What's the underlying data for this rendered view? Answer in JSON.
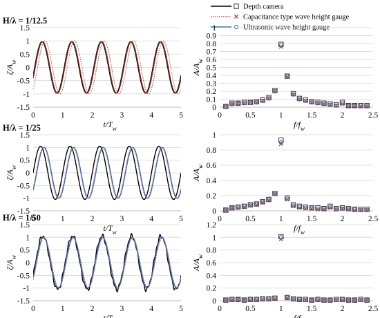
{
  "legend": [
    {
      "label": "Depth camera",
      "marker": "square",
      "line_color": "#000000",
      "marker_color": "#333333"
    },
    {
      "label": "Capacitance type wave height gauge",
      "marker": "x",
      "line_color": "#c0504d",
      "marker_color": "#c0392b"
    },
    {
      "label": "Ultrasonic wave height gauge",
      "marker": "circle",
      "line_color": "#2e75b6",
      "marker_color": "#2e75b6"
    }
  ],
  "chart_data": [
    {
      "type": "line",
      "row": 0,
      "panel": "time",
      "heading": "H/λ = 1/12.5",
      "xlabel": "t/T",
      "xlabel_sub": "w",
      "ylabel": "ζ/A",
      "ylabel_sub": "w",
      "xlim": [
        0,
        5
      ],
      "ylim": [
        -1.5,
        1.5
      ],
      "xticks": [
        "0",
        "1",
        "2",
        "3",
        "4",
        "5"
      ],
      "yticks": [
        "-1.5",
        "-1",
        "-0.5",
        "0",
        "0.5",
        "1",
        "1.5"
      ],
      "series": [
        {
          "color": "#c0504d",
          "dashed": true,
          "amplitude": 1.0,
          "phase": 0.15,
          "period": 1.0
        },
        {
          "color": "#000000",
          "dashed": false,
          "amplitude": 0.97,
          "phase": 0.05,
          "period": 1.0
        },
        {
          "color": "#7a2e2a",
          "dashed": false,
          "amplitude": 0.97,
          "phase": 0.07,
          "period": 1.0
        }
      ]
    },
    {
      "type": "scatter",
      "row": 0,
      "panel": "spectrum",
      "xlabel": "f/f",
      "xlabel_sub": "w",
      "ylabel": "A/A",
      "ylabel_sub": "w",
      "xlim": [
        0,
        2.5
      ],
      "ylim": [
        0,
        1
      ],
      "xticks": [
        "0",
        "0.5",
        "1",
        "1.5",
        "2",
        "2.5"
      ],
      "yticks": [
        "0",
        "0.1",
        "0.2",
        "0.3",
        "0.4",
        "0.5",
        "0.6",
        "0.7",
        "0.8",
        "0.9",
        "1"
      ],
      "x": [
        0.1,
        0.2,
        0.3,
        0.4,
        0.5,
        0.6,
        0.7,
        0.8,
        0.9,
        1.0,
        1.1,
        1.2,
        1.3,
        1.4,
        1.5,
        1.6,
        1.7,
        1.8,
        1.9,
        2.0,
        2.1,
        2.2,
        2.3,
        2.4
      ],
      "series": [
        {
          "marker": "square",
          "values": [
            0.01,
            0.05,
            0.05,
            0.06,
            0.06,
            0.07,
            0.09,
            0.12,
            0.21,
            0.79,
            0.39,
            0.17,
            0.11,
            0.09,
            0.07,
            0.06,
            0.05,
            0.04,
            0.03,
            0.06,
            0.02,
            0.02,
            0.02,
            0.02
          ]
        },
        {
          "marker": "x",
          "values": [
            0.01,
            0.04,
            0.05,
            0.05,
            0.06,
            0.06,
            0.08,
            0.11,
            0.2,
            0.76,
            0.38,
            0.16,
            0.1,
            0.08,
            0.06,
            0.05,
            0.04,
            0.03,
            0.02,
            0.04,
            0.02,
            0.02,
            0.01,
            0.01
          ]
        },
        {
          "marker": "circle",
          "values": [
            0.01,
            0.04,
            0.05,
            0.05,
            0.06,
            0.06,
            0.08,
            0.11,
            0.2,
            0.78,
            0.39,
            0.16,
            0.1,
            0.08,
            0.06,
            0.05,
            0.04,
            0.03,
            0.02,
            0.05,
            0.02,
            0.02,
            0.02,
            0.01
          ]
        }
      ]
    },
    {
      "type": "line",
      "row": 1,
      "panel": "time",
      "heading": "H/λ = 1/25",
      "xlabel": "t/T",
      "xlabel_sub": "w",
      "ylabel": "ζ/A",
      "ylabel_sub": "w",
      "xlim": [
        0,
        5
      ],
      "ylim": [
        -1.5,
        1.5
      ],
      "xticks": [
        "0",
        "1",
        "2",
        "3",
        "4",
        "5"
      ],
      "yticks": [
        "-1.5",
        "-1",
        "-0.5",
        "0",
        "0.5",
        "1",
        "1.5"
      ],
      "series": [
        {
          "color": "#000000",
          "dashed": false,
          "amplitude": 1.05,
          "phase": 0.0,
          "period": 1.0
        },
        {
          "color": "#2e75b6",
          "dashed": false,
          "amplitude": 1.0,
          "phase": 0.12,
          "period": 1.0
        },
        {
          "color": "#c0504d",
          "dashed": true,
          "amplitude": 1.0,
          "phase": 0.1,
          "period": 1.0
        }
      ]
    },
    {
      "type": "scatter",
      "row": 1,
      "panel": "spectrum",
      "xlabel": "f/f",
      "xlabel_sub": "w",
      "ylabel": "A/A",
      "ylabel_sub": "w",
      "xlim": [
        0,
        2.5
      ],
      "ylim": [
        0,
        1
      ],
      "xticks": [
        "0",
        "0.5",
        "1",
        "1.5",
        "2",
        "2.5"
      ],
      "yticks": [
        "0",
        "0.2",
        "0.4",
        "0.6",
        "0.8",
        "1"
      ],
      "x": [
        0.1,
        0.2,
        0.3,
        0.4,
        0.5,
        0.6,
        0.7,
        0.8,
        0.9,
        1.0,
        1.1,
        1.2,
        1.3,
        1.4,
        1.5,
        1.6,
        1.7,
        1.8,
        1.9,
        2.0,
        2.1,
        2.2,
        2.3,
        2.4
      ],
      "series": [
        {
          "marker": "square",
          "values": [
            0.01,
            0.04,
            0.05,
            0.06,
            0.08,
            0.09,
            0.12,
            0.15,
            0.23,
            0.93,
            0.17,
            0.08,
            0.06,
            0.05,
            0.04,
            0.04,
            0.03,
            0.06,
            0.03,
            0.04,
            0.03,
            0.02,
            0.02,
            0.02
          ]
        },
        {
          "marker": "x",
          "values": [
            0.01,
            0.04,
            0.04,
            0.05,
            0.07,
            0.08,
            0.11,
            0.14,
            0.22,
            0.88,
            0.15,
            0.06,
            0.04,
            0.03,
            0.03,
            0.02,
            0.02,
            0.04,
            0.02,
            0.03,
            0.02,
            0.01,
            0.01,
            0.01
          ]
        },
        {
          "marker": "circle",
          "values": [
            0.01,
            0.04,
            0.05,
            0.06,
            0.07,
            0.09,
            0.12,
            0.15,
            0.22,
            0.9,
            0.16,
            0.07,
            0.05,
            0.04,
            0.04,
            0.03,
            0.03,
            0.05,
            0.02,
            0.03,
            0.02,
            0.02,
            0.01,
            0.01
          ]
        }
      ]
    },
    {
      "type": "line",
      "row": 2,
      "panel": "time",
      "heading": "H/λ = 1/50",
      "xlabel": "t/T",
      "xlabel_sub": "w",
      "ylabel": "ζ/A",
      "ylabel_sub": "w",
      "xlim": [
        0,
        5
      ],
      "ylim": [
        -1.5,
        1.5
      ],
      "xticks": [
        "0",
        "1",
        "2",
        "3",
        "4",
        "5"
      ],
      "yticks": [
        "-1.5",
        "-1",
        "-0.5",
        "0",
        "0.5",
        "1",
        "1.5"
      ],
      "series": [
        {
          "color": "#000000",
          "dashed": false,
          "amplitude": 1.05,
          "phase": 0.08,
          "period": 1.0,
          "noise": 0.1
        },
        {
          "color": "#2e75b6",
          "dashed": false,
          "amplitude": 1.0,
          "phase": 0.1,
          "period": 1.0
        },
        {
          "color": "#c0504d",
          "dashed": true,
          "amplitude": 0.98,
          "phase": 0.12,
          "period": 1.0
        }
      ]
    },
    {
      "type": "scatter",
      "row": 2,
      "panel": "spectrum",
      "xlabel": "f/f",
      "xlabel_sub": "w",
      "ylabel": "A/A",
      "ylabel_sub": "w",
      "xlim": [
        0,
        2.5
      ],
      "ylim": [
        0,
        1.2
      ],
      "xticks": [
        "0",
        "0.5",
        "1",
        "1.5",
        "2",
        "2.5"
      ],
      "yticks": [
        "0",
        "0.2",
        "0.4",
        "0.6",
        "0.8",
        "1",
        "1.2"
      ],
      "x": [
        0.1,
        0.2,
        0.3,
        0.4,
        0.5,
        0.6,
        0.7,
        0.8,
        0.9,
        1.0,
        1.1,
        1.2,
        1.3,
        1.4,
        1.5,
        1.6,
        1.7,
        1.8,
        1.9,
        2.0,
        2.1,
        2.2,
        2.3,
        2.4
      ],
      "series": [
        {
          "marker": "square",
          "values": [
            0.01,
            0.02,
            0.02,
            0.01,
            0.02,
            0.02,
            0.03,
            0.03,
            0.04,
            1.01,
            0.05,
            0.03,
            0.02,
            0.02,
            0.01,
            0.02,
            0.01,
            0.01,
            0.02,
            0.02,
            0.01,
            0.01,
            0.02,
            0.01
          ]
        },
        {
          "marker": "x",
          "values": [
            0.01,
            0.01,
            0.02,
            0.01,
            0.01,
            0.01,
            0.02,
            0.02,
            0.03,
            0.97,
            0.04,
            0.02,
            0.01,
            0.01,
            0.01,
            0.01,
            0.01,
            0.01,
            0.01,
            0.01,
            0.01,
            0.01,
            0.01,
            0.01
          ]
        },
        {
          "marker": "circle",
          "values": [
            0.01,
            0.02,
            0.02,
            0.01,
            0.02,
            0.02,
            0.03,
            0.03,
            0.04,
            1.0,
            0.05,
            0.02,
            0.02,
            0.01,
            0.01,
            0.02,
            0.01,
            0.01,
            0.01,
            0.02,
            0.01,
            0.01,
            0.01,
            0.01
          ]
        }
      ]
    }
  ]
}
